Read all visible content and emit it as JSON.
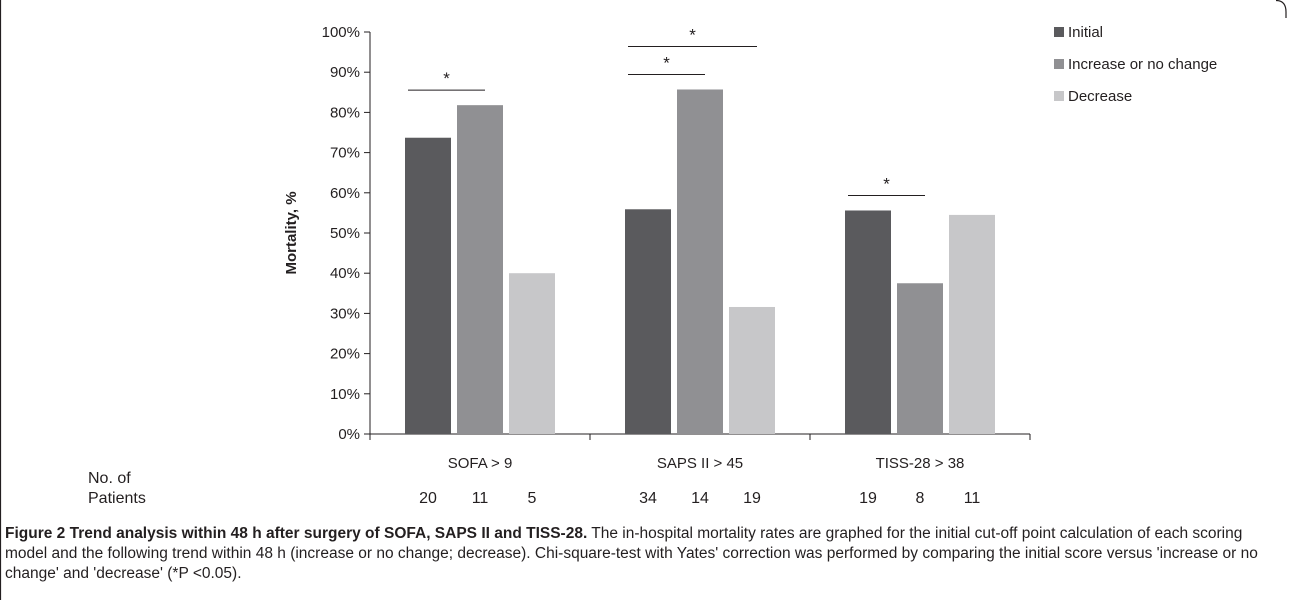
{
  "chart_data": {
    "type": "bar",
    "categories": [
      "SOFA > 9",
      "SAPS II > 45",
      "TISS-28 > 38"
    ],
    "series": [
      {
        "name": "Initial",
        "values": [
          73.7,
          55.9,
          55.6
        ],
        "color": "#5a5a5d"
      },
      {
        "name": "Increase or no change",
        "values": [
          81.8,
          85.7,
          37.5
        ],
        "color": "#909093"
      },
      {
        "name": "Decrease",
        "values": [
          40.0,
          31.6,
          54.5
        ],
        "color": "#c7c7c9"
      }
    ],
    "ylabel": "Mortality, %",
    "ylim": [
      0,
      100
    ],
    "yticks": [
      "0%",
      "10%",
      "20%",
      "30%",
      "40%",
      "50%",
      "60%",
      "70%",
      "80%",
      "90%",
      "100%"
    ],
    "legend_position": "top-right",
    "significance": [
      {
        "category": 0,
        "from": 0,
        "to": 1,
        "label": "*"
      },
      {
        "category": 1,
        "from": 0,
        "to": 1,
        "label": "*"
      },
      {
        "category": 1,
        "from": 0,
        "to": 2,
        "label": "*"
      },
      {
        "category": 2,
        "from": 0,
        "to": 1,
        "label": "*"
      }
    ],
    "patients_label_line1": "No. of",
    "patients_label_line2": "Patients",
    "patients": [
      [
        "20",
        "11",
        "5"
      ],
      [
        "34",
        "14",
        "19"
      ],
      [
        "19",
        "8",
        "11"
      ]
    ]
  },
  "caption": {
    "bold": "Figure 2 Trend analysis within 48 h after surgery of SOFA, SAPS II and TISS-28.",
    "text": " The in-hospital mortality rates are graphed for the initial cut-off point calculation of each scoring model and the following trend within 48 h (increase or no change; decrease). Chi-square-test with Yates' correction was performed by comparing the initial score versus 'increase or no change' and 'decrease' (*P <0.05)."
  }
}
